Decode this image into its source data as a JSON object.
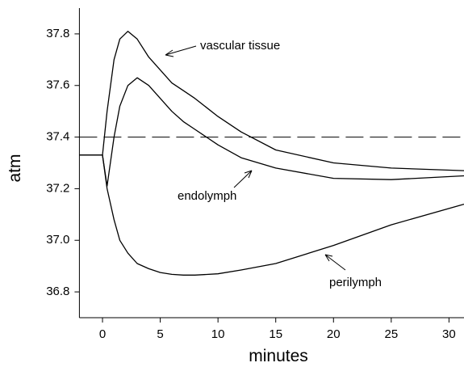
{
  "chart_data": {
    "type": "line",
    "x_label": "minutes",
    "y_label": "atm",
    "x": [
      -2,
      0,
      0.4,
      1,
      1.5,
      2.2,
      3,
      4,
      5,
      6,
      7,
      8,
      10,
      12,
      15,
      20,
      25,
      31.3
    ],
    "series": [
      {
        "name": "vascular tissue",
        "color": "#000000",
        "values": [
          37.33,
          37.33,
          37.5,
          37.7,
          37.78,
          37.81,
          37.78,
          37.71,
          37.66,
          37.61,
          37.58,
          37.55,
          37.48,
          37.42,
          37.35,
          37.3,
          37.28,
          37.27
        ]
      },
      {
        "name": "endolymph",
        "color": "#000000",
        "values": [
          37.33,
          37.33,
          37.21,
          37.4,
          37.52,
          37.6,
          37.63,
          37.6,
          37.55,
          37.5,
          37.46,
          37.43,
          37.37,
          37.32,
          37.28,
          37.24,
          37.235,
          37.25
        ]
      },
      {
        "name": "perilymph",
        "color": "#000000",
        "values": [
          37.33,
          37.33,
          37.2,
          37.08,
          37.0,
          36.95,
          36.91,
          36.89,
          36.875,
          36.868,
          36.865,
          36.865,
          36.87,
          36.885,
          36.91,
          36.98,
          37.06,
          37.14
        ]
      }
    ],
    "reference_line": 37.4,
    "xlim": [
      -2,
      31.3
    ],
    "ylim": [
      36.7,
      37.9
    ],
    "xticks": [
      0,
      5,
      10,
      15,
      20,
      25,
      30
    ],
    "yticks": [
      36.8,
      {
        "value": 37.0,
        "label": "37.0"
      },
      37.2,
      37.4,
      37.6,
      37.8
    ],
    "grid": false
  }
}
